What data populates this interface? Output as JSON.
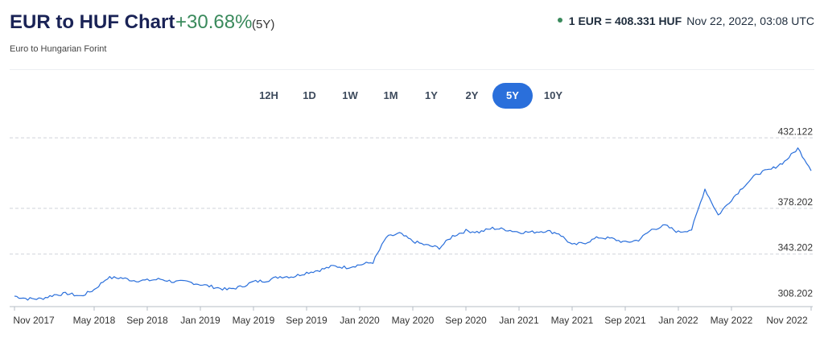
{
  "header": {
    "title": "EUR to HUF Chart",
    "change": "+30.68%",
    "period": "(5Y)",
    "subtitle": "Euro to Hungarian Forint",
    "rate_pair": "1 EUR = 408.331 HUF",
    "rate_time": "Nov 22, 2022, 03:08 UTC"
  },
  "colors": {
    "line": "#2a6fdb",
    "active_tab": "#2a6fdb",
    "positive": "#3a8a5c",
    "title": "#1a2356"
  },
  "tabs": [
    {
      "label": "12H",
      "active": false
    },
    {
      "label": "1D",
      "active": false
    },
    {
      "label": "1W",
      "active": false
    },
    {
      "label": "1M",
      "active": false
    },
    {
      "label": "1Y",
      "active": false
    },
    {
      "label": "2Y",
      "active": false
    },
    {
      "label": "5Y",
      "active": true
    },
    {
      "label": "10Y",
      "active": false
    }
  ],
  "chart_data": {
    "type": "line",
    "title": "",
    "xlabel": "",
    "ylabel": "",
    "grid": "horizontal dashed",
    "ylim": [
      303,
      436
    ],
    "y_ticks": [
      "432.122",
      "378.202",
      "343.202",
      "308.202"
    ],
    "x_ticks": [
      "Nov 2017",
      "May 2018",
      "Sep 2018",
      "Jan 2019",
      "May 2019",
      "Sep 2019",
      "Jan 2020",
      "May 2020",
      "Sep 2020",
      "Jan 2021",
      "May 2021",
      "Sep 2021",
      "Jan 2022",
      "May 2022",
      "Nov 2022"
    ],
    "series": [
      {
        "x": [
          "2017-11",
          "2017-12",
          "2018-01",
          "2018-02",
          "2018-03",
          "2018-04",
          "2018-05",
          "2018-06",
          "2018-07",
          "2018-08",
          "2018-09",
          "2018-10",
          "2018-11",
          "2018-12",
          "2019-01",
          "2019-02",
          "2019-03",
          "2019-04",
          "2019-05",
          "2019-06",
          "2019-07",
          "2019-08",
          "2019-09",
          "2019-10",
          "2019-11",
          "2019-12",
          "2020-01",
          "2020-02",
          "2020-03",
          "2020-04",
          "2020-05",
          "2020-06",
          "2020-07",
          "2020-08",
          "2020-09",
          "2020-10",
          "2020-11",
          "2020-12",
          "2021-01",
          "2021-02",
          "2021-03",
          "2021-04",
          "2021-05",
          "2021-06",
          "2021-07",
          "2021-08",
          "2021-09",
          "2021-10",
          "2021-11",
          "2021-12",
          "2022-01",
          "2022-02",
          "2022-03",
          "2022-04",
          "2022-05",
          "2022-06",
          "2022-07",
          "2022-08",
          "2022-09",
          "2022-10",
          "2022-11"
        ],
        "values": [
          311,
          309,
          309,
          312,
          313,
          311,
          316,
          325,
          325,
          323,
          323,
          324,
          322,
          322,
          320,
          318,
          316,
          318,
          322,
          323,
          326,
          326,
          329,
          331,
          334,
          333,
          335,
          337,
          356,
          359,
          353,
          350,
          348,
          357,
          361,
          360,
          363,
          362,
          360,
          360,
          361,
          359,
          350,
          352,
          356,
          355,
          352,
          354,
          362,
          365,
          360,
          362,
          393,
          373,
          385,
          396,
          405,
          408,
          414,
          424,
          408
        ]
      }
    ]
  }
}
